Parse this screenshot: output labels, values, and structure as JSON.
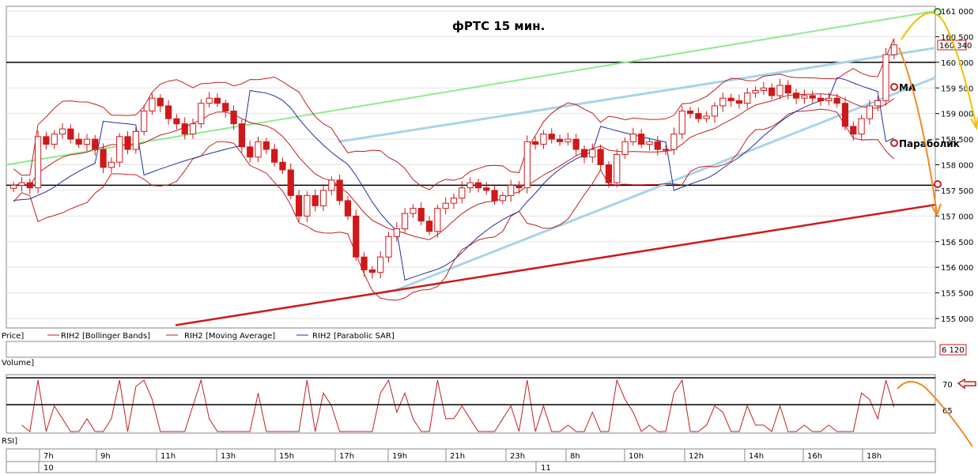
{
  "chart_data": {
    "type": "candlestick",
    "title": "фРТС   15 мин.",
    "price_axis": {
      "ylim": [
        154800,
        161050
      ],
      "ticks": [
        "155 000",
        "155 500",
        "156 000",
        "156 500",
        "157 000",
        "157 500",
        "158 000",
        "158 500",
        "159 000",
        "159 500",
        "160 000",
        "160 500",
        "161 000"
      ],
      "last_price_label": "160 340",
      "last_price": 160340
    },
    "horizontal_levels": [
      160000,
      157600,
      157520
    ],
    "time_axis": {
      "hour_labels": [
        "7h",
        "9h",
        "11h",
        "13h",
        "15h",
        "17h",
        "19h",
        "21h",
        "23h",
        "8h",
        "10h",
        "12h",
        "14h",
        "16h",
        "18h"
      ],
      "day_labels": [
        "10",
        "11"
      ]
    },
    "legend": [
      "Price]",
      "RIH2 [Bollinger Bands]",
      "RIH2 [Moving Average]",
      "RIH2 [Parabolic SAR]"
    ],
    "annotations": {
      "ma": "MA",
      "parabolic": "Параболик"
    },
    "panels": {
      "volume": {
        "label": "Volume]",
        "last_value": "6 120"
      },
      "rsi": {
        "label": "RSI]",
        "ticks": [
          "70",
          "65"
        ]
      }
    },
    "closes": [
      157600,
      157650,
      157550,
      158550,
      158400,
      158600,
      158700,
      158500,
      158400,
      158500,
      158300,
      157950,
      158050,
      158550,
      158300,
      158650,
      159050,
      159300,
      159150,
      158900,
      158800,
      158600,
      158800,
      159200,
      159300,
      159200,
      159050,
      158800,
      158350,
      158150,
      158450,
      158300,
      158050,
      157900,
      157400,
      157000,
      157400,
      157200,
      157500,
      157700,
      157300,
      157000,
      156200,
      155950,
      155900,
      156200,
      156600,
      156750,
      157050,
      157150,
      156900,
      156700,
      157150,
      157250,
      157350,
      157550,
      157650,
      157550,
      157500,
      157300,
      157400,
      157600,
      157550,
      158450,
      158400,
      158600,
      158500,
      158450,
      158500,
      158300,
      158150,
      158300,
      158000,
      157650,
      158200,
      158450,
      158600,
      158400,
      158450,
      158300,
      158300,
      158600,
      159050,
      159000,
      158900,
      158950,
      159150,
      159300,
      159250,
      159200,
      159400,
      159450,
      159500,
      159350,
      159550,
      159400,
      159300,
      159350,
      159300,
      159250,
      159300,
      159200,
      158750,
      158600,
      158900,
      159150,
      159250,
      160150,
      160340
    ],
    "series": [
      {
        "name": "RIH2 [Bollinger Bands]",
        "color": "#c02020"
      },
      {
        "name": "RIH2 [Moving Average]",
        "color": "#c02020"
      },
      {
        "name": "RIH2 [Parabolic SAR]",
        "color": "#2030a0"
      }
    ],
    "colors": {
      "up": "#ffffff",
      "down": "#d01818",
      "green_line": "#90e890",
      "blue_line": "#a8d4e8",
      "red_line": "#cc1a1a",
      "yellow_arrow": "#f0c000",
      "orange_arrow": "#f08a20"
    }
  }
}
